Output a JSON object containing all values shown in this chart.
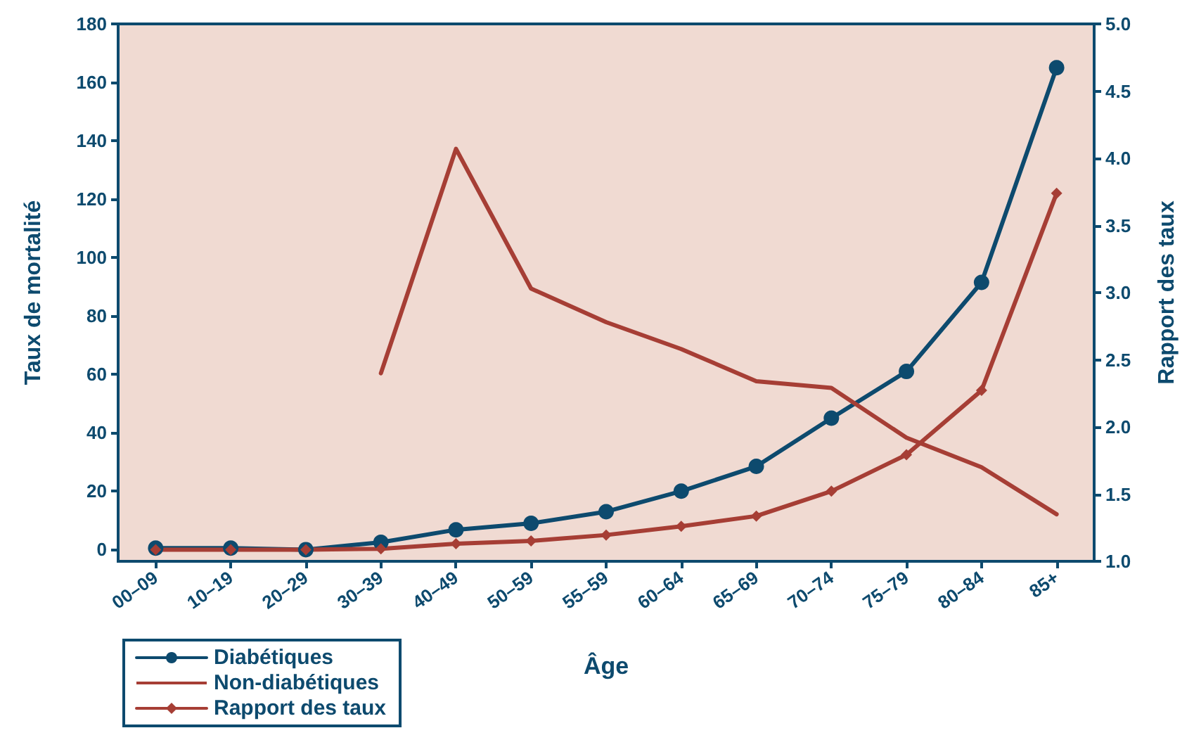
{
  "chart_data": {
    "type": "line",
    "xlabel": "Âge",
    "ylabel": "Taux de mortalité",
    "y2label": "Rapport des taux",
    "categories": [
      "00–09",
      "10–19",
      "20–29",
      "30–39",
      "40–49",
      "50–59",
      "55–59",
      "60–64",
      "65–69",
      "70–74",
      "75–79",
      "80–84",
      "85+"
    ],
    "series": [
      {
        "name": "Diabétiques",
        "color": "#0d4a6e",
        "marker": "circle",
        "values": [
          0.5,
          0.5,
          0,
          2.5,
          6.8,
          9,
          13,
          20,
          28.5,
          45,
          61,
          91.5,
          165
        ]
      },
      {
        "name": "Non-diabétiques",
        "color": "#a63e35",
        "marker": "none",
        "axis": "y2",
        "values": [
          null,
          null,
          null,
          2.4,
          4.07,
          3.03,
          2.78,
          2.58,
          2.34,
          2.29,
          1.92,
          1.7,
          1.35
        ]
      },
      {
        "name": "Rapport des taux",
        "color": "#a63e35",
        "marker": "diamond",
        "values": [
          0,
          0,
          0,
          0.3,
          2,
          3,
          5,
          8,
          11.5,
          20,
          32.5,
          54.5,
          122
        ]
      }
    ],
    "ylim": [
      -4,
      180
    ],
    "yticks": [
      0,
      20,
      40,
      60,
      80,
      100,
      120,
      140,
      160,
      180
    ],
    "y2lim": [
      1,
      5
    ],
    "y2ticks": [
      {
        "value": 1,
        "label": "1.0"
      },
      {
        "value": 1.5,
        "label": "1.5"
      },
      {
        "value": 2,
        "label": "2.0"
      },
      {
        "value": 2.5,
        "label": "2.5"
      },
      {
        "value": 3,
        "label": "3.0"
      },
      {
        "value": 3.5,
        "label": "3.5"
      },
      {
        "value": 4,
        "label": "4.0"
      },
      {
        "value": 4.5,
        "label": "4.5"
      },
      {
        "value": 5,
        "label": "5.0"
      }
    ],
    "grid": false,
    "legend": "bottom left",
    "line_style": "solid"
  }
}
